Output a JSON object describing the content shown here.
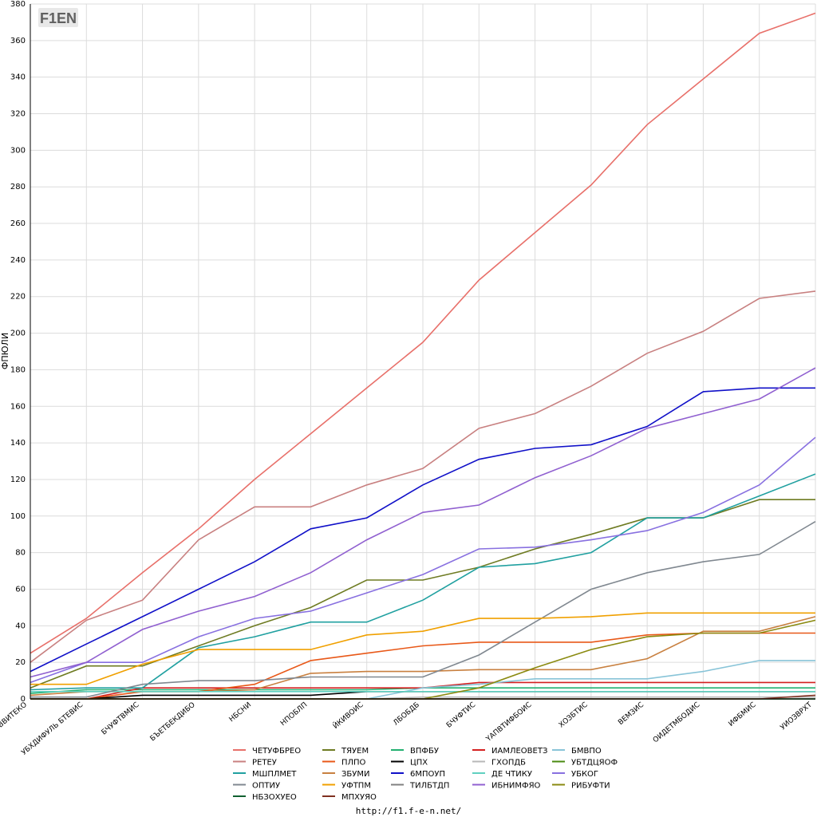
{
  "logo_text": "F1EN",
  "footer_url": "http://f1.f-e-n.net/",
  "chart_data": {
    "type": "line",
    "ylabel": "ФПЮЛИ",
    "ylim": [
      0,
      380
    ],
    "ytick_step": 20,
    "grid": true,
    "legend_position": "bottom",
    "categories": [
      "ВВИТЕКО",
      "УБХДИФУЛЬ БТЕВИС",
      "БЧУФТВМИС",
      "БЪЕТБЕКДИБО",
      "НБСНИ",
      "НПОБЛП",
      "ЙКИВОИС",
      "ЛБОБДБ",
      "БЧУФТИС",
      "ҮАПВТИФБОИС",
      "ХОЗБТИС",
      "ВЕМЗИС",
      "ОИДЕТМБОДИС",
      "ИФБМИС",
      "УИОЗВРХТ"
    ],
    "series": [
      {
        "name": "ЧЕТУФБРЕО",
        "color": "#e8706a",
        "values": [
          25,
          44,
          69,
          93,
          120,
          145,
          170,
          195,
          229,
          255,
          281,
          314,
          339,
          364,
          375
        ]
      },
      {
        "name": "ТЯУЕМ",
        "color": "#6e7b22",
        "values": [
          6,
          18,
          18,
          29,
          40,
          50,
          65,
          65,
          72,
          82,
          90,
          99,
          99,
          109,
          109
        ]
      },
      {
        "name": "ВПФБУ",
        "color": "#22b070",
        "values": [
          3,
          5,
          5,
          5,
          5,
          5,
          5,
          6,
          6,
          6,
          6,
          6,
          6,
          6,
          6
        ]
      },
      {
        "name": "ИАМЛЕОВЕТЗ",
        "color": "#d42020",
        "values": [
          0,
          0,
          6,
          6,
          6,
          6,
          6,
          6,
          9,
          9,
          9,
          9,
          9,
          9,
          9
        ]
      },
      {
        "name": "БМВПО",
        "color": "#88c4d8",
        "values": [
          0,
          0,
          0,
          0,
          0,
          0,
          0,
          6,
          8,
          11,
          11,
          11,
          15,
          21,
          21
        ]
      },
      {
        "name": "РЕТЕУ",
        "color": "#c88080",
        "values": [
          20,
          43,
          54,
          87,
          105,
          105,
          117,
          126,
          148,
          156,
          171,
          189,
          201,
          219,
          223
        ]
      },
      {
        "name": "ПЛПО",
        "color": "#e85818",
        "values": [
          0,
          0,
          4,
          4,
          8,
          21,
          25,
          29,
          31,
          31,
          31,
          35,
          36,
          36,
          36
        ]
      },
      {
        "name": "ЦПХ",
        "color": "#000000",
        "values": [
          0,
          0,
          2,
          2,
          2,
          2,
          4,
          4,
          4,
          4,
          4,
          4,
          4,
          4,
          4
        ]
      },
      {
        "name": "ГХОПДБ",
        "color": "#b8b8b8",
        "values": [
          0,
          0,
          0,
          0,
          0,
          0,
          0,
          1,
          1,
          1,
          1,
          1,
          1,
          1,
          1
        ]
      },
      {
        "name": "УБТДЦЯОФ",
        "color": "#4a8a10",
        "values": [
          0,
          0,
          0,
          0,
          0,
          0,
          0,
          0,
          0,
          0,
          0,
          0,
          0,
          0,
          0
        ]
      },
      {
        "name": "МШПЛМЕТ",
        "color": "#20a0a0",
        "values": [
          5,
          6,
          6,
          28,
          34,
          42,
          42,
          54,
          72,
          74,
          80,
          99,
          99,
          111,
          123
        ]
      },
      {
        "name": "ЗБУМИ",
        "color": "#c88040",
        "values": [
          2,
          4,
          4,
          4,
          5,
          14,
          15,
          15,
          16,
          16,
          16,
          22,
          37,
          37,
          45
        ]
      },
      {
        "name": "6МПОУП",
        "color": "#1010c8",
        "values": [
          15,
          30,
          45,
          60,
          75,
          93,
          99,
          117,
          131,
          137,
          139,
          149,
          168,
          170,
          170
        ]
      },
      {
        "name": "ДЕ ЧТИКУ",
        "color": "#60d0c0",
        "values": [
          4,
          4,
          4,
          4,
          4,
          4,
          4,
          4,
          4,
          4,
          4,
          4,
          4,
          4,
          4
        ]
      },
      {
        "name": "УБКОГ",
        "color": "#8870e0",
        "values": [
          9,
          20,
          20,
          34,
          44,
          48,
          58,
          68,
          82,
          83,
          87,
          92,
          102,
          117,
          143
        ]
      },
      {
        "name": "ОПТИУ",
        "color": "#808890",
        "values": [
          1,
          1,
          8,
          10,
          10,
          12,
          12,
          12,
          24,
          42,
          60,
          69,
          75,
          79,
          97
        ]
      },
      {
        "name": "УФТПМ",
        "color": "#f0a000",
        "values": [
          8,
          8,
          19,
          27,
          27,
          27,
          35,
          37,
          44,
          44,
          45,
          47,
          47,
          47,
          47
        ]
      },
      {
        "name": "ТИЛБТДП",
        "color": "#808080",
        "values": [
          0,
          0,
          0,
          0,
          0,
          0,
          0,
          0,
          0,
          0,
          0,
          0,
          0,
          0,
          0
        ]
      },
      {
        "name": "ИБНИМФЯО",
        "color": "#9060d0",
        "values": [
          12,
          20,
          38,
          48,
          56,
          69,
          87,
          102,
          106,
          121,
          133,
          148,
          156,
          164,
          181
        ]
      },
      {
        "name": "РИБУФТИ",
        "color": "#8a8a10",
        "values": [
          0,
          0,
          0,
          0,
          0,
          0,
          0,
          0,
          6,
          17,
          27,
          34,
          36,
          36,
          43
        ]
      },
      {
        "name": "НБЗОХУЕО",
        "color": "#106030",
        "values": [
          0,
          0,
          0,
          0,
          0,
          0,
          0,
          0,
          0,
          0,
          0,
          0,
          0,
          0,
          0
        ]
      },
      {
        "name": "МПХУЯО",
        "color": "#803020",
        "values": [
          0,
          0,
          0,
          0,
          0,
          0,
          0,
          0,
          0,
          0,
          0,
          0,
          0,
          0,
          2
        ]
      }
    ]
  }
}
